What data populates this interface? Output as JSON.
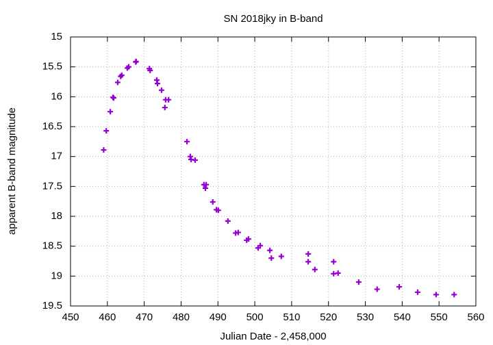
{
  "chart_data": {
    "type": "scatter",
    "title": "SN 2018jky in B-band",
    "xlabel": "Julian Date - 2,458,000",
    "ylabel": "apparent B-band magnitude",
    "xlim": [
      450,
      560
    ],
    "xticks": [
      450,
      460,
      470,
      480,
      490,
      500,
      510,
      520,
      530,
      540,
      550,
      560
    ],
    "ylim": [
      15,
      19.5
    ],
    "yticks": [
      15,
      15.5,
      16,
      16.5,
      17,
      17.5,
      18,
      18.5,
      19,
      19.5
    ],
    "y_inverted": true,
    "grid": true,
    "series": [
      {
        "color": "#9400d3",
        "x": [
          459.0,
          459.7,
          460.8,
          461.5,
          461.7,
          462.8,
          463.6,
          463.9,
          465.4,
          465.8,
          467.7,
          467.8,
          471.4,
          471.6,
          473.4,
          473.6,
          474.7,
          475.8,
          476.6,
          475.6,
          481.6,
          482.5,
          482.7,
          483.8,
          486.2,
          486.8,
          486.6,
          488.6,
          489.6,
          490.1,
          492.7,
          494.8,
          495.5,
          497.8,
          498.3,
          500.9,
          501.5,
          504.1,
          504.5,
          507.2,
          514.5,
          514.5,
          516.3,
          521.4,
          521.4,
          522.6,
          528.2,
          533.2,
          539.2,
          544.2,
          549.2,
          554.1
        ],
        "values": [
          16.89,
          16.57,
          16.25,
          16.01,
          16.02,
          15.76,
          15.66,
          15.64,
          15.52,
          15.5,
          15.42,
          15.41,
          15.53,
          15.56,
          15.72,
          15.78,
          15.89,
          16.05,
          16.05,
          16.18,
          16.75,
          17.0,
          17.05,
          17.06,
          17.47,
          17.47,
          17.53,
          17.76,
          17.89,
          17.9,
          18.08,
          18.28,
          18.27,
          18.4,
          18.38,
          18.53,
          18.49,
          18.57,
          18.7,
          18.67,
          18.63,
          18.76,
          18.89,
          18.76,
          18.96,
          18.95,
          19.1,
          19.22,
          19.18,
          19.27,
          19.31,
          19.31
        ]
      }
    ]
  }
}
